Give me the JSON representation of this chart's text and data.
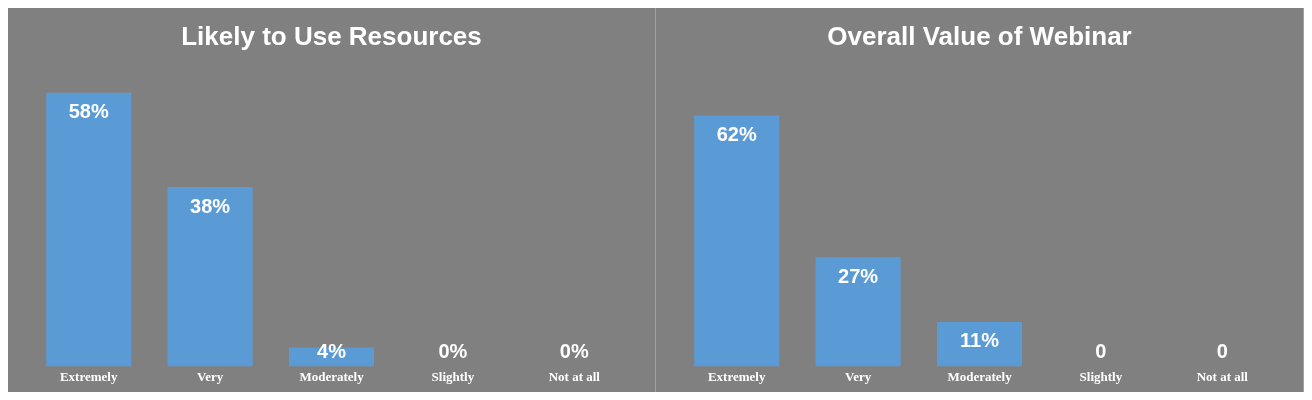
{
  "chart_data": [
    {
      "type": "bar",
      "title": "Likely to Use Resources",
      "categories": [
        "Extremely",
        "Very",
        "Moderately",
        "Slightly",
        "Not at all"
      ],
      "values": [
        58,
        38,
        4,
        0,
        0
      ],
      "value_labels": [
        "58%",
        "38%",
        "4%",
        "0%",
        "0%"
      ],
      "color": "#5b9bd5"
    },
    {
      "type": "bar",
      "title": "Overall Value of Webinar",
      "categories": [
        "Extremely",
        "Very",
        "Moderately",
        "Slightly",
        "Not at all"
      ],
      "values": [
        62,
        27,
        11,
        0,
        0
      ],
      "value_labels": [
        "62%",
        "27%",
        "11%",
        "0",
        "0"
      ],
      "color": "#5b9bd5"
    }
  ]
}
